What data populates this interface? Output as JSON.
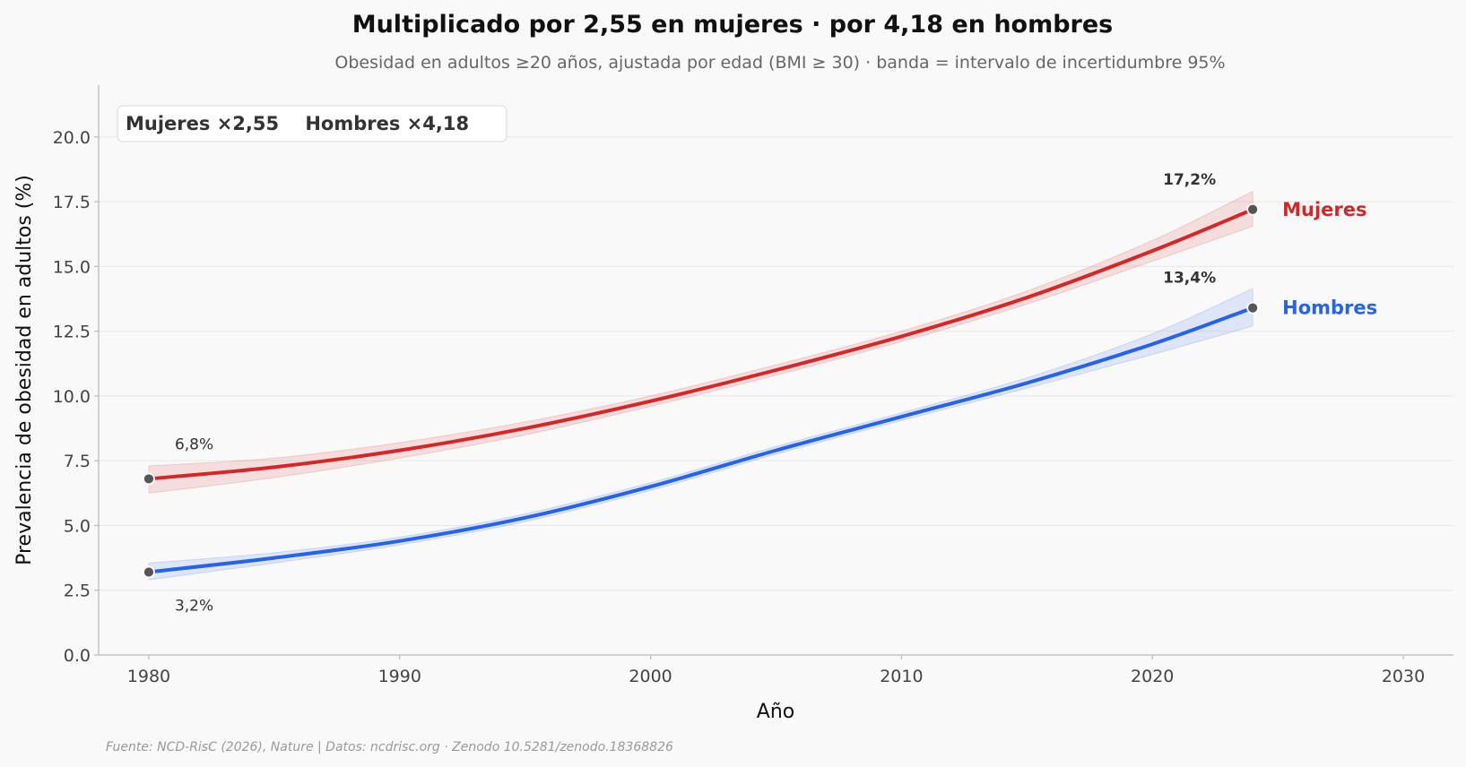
{
  "chart_data": {
    "type": "line",
    "title": "Multiplicado por 2,55 en mujeres · por 4,18 en hombres",
    "subtitle": "Obesidad en adultos ≥20 años, ajustada por edad (BMI ≥ 30) · banda = intervalo de incertidumbre 95%",
    "xlabel": "Año",
    "ylabel": "Prevalencia de obesidad en adultos (%)",
    "source": "Fuente: NCD-RisC (2026), Nature | Datos: ncdrisc.org · Zenodo 10.5281/zenodo.18368826",
    "xlim": [
      1978,
      2032
    ],
    "ylim": [
      0,
      22
    ],
    "x_ticks": [
      1980,
      1990,
      2000,
      2010,
      2020,
      2030
    ],
    "x_tick_labels": [
      "1980",
      "1990",
      "2000",
      "2010",
      "2020",
      "2030"
    ],
    "y_ticks": [
      0,
      2.5,
      5,
      7.5,
      10,
      12.5,
      15,
      17.5,
      20
    ],
    "y_tick_labels": [
      "0.0",
      "2.5",
      "5.0",
      "7.5",
      "10.0",
      "12.5",
      "15.0",
      "17.5",
      "20.0"
    ],
    "grid": "horizontal",
    "legend": {
      "placement": "top-left",
      "text": "Mujeres ×2,55    Hombres ×4,18"
    },
    "x": [
      1980,
      1985,
      1990,
      1995,
      2000,
      2005,
      2010,
      2015,
      2020,
      2024
    ],
    "series": [
      {
        "name": "Mujeres",
        "color": "#d62728",
        "values": [
          6.8,
          7.25,
          7.9,
          8.75,
          9.8,
          11.0,
          12.3,
          13.8,
          15.6,
          17.2
        ],
        "lower": [
          6.25,
          6.85,
          7.6,
          8.5,
          9.6,
          10.8,
          12.1,
          13.55,
          15.2,
          16.55
        ],
        "upper": [
          7.3,
          7.6,
          8.2,
          9.0,
          10.0,
          11.2,
          12.5,
          14.05,
          16.0,
          17.9
        ],
        "start_label": "6,8%",
        "end_label": "17,2%"
      },
      {
        "name": "Hombres",
        "color": "#2563eb",
        "values": [
          3.2,
          3.75,
          4.4,
          5.3,
          6.5,
          7.9,
          9.2,
          10.5,
          12.0,
          13.4
        ],
        "lower": [
          2.9,
          3.55,
          4.25,
          5.15,
          6.35,
          7.75,
          9.05,
          10.3,
          11.6,
          12.7
        ],
        "upper": [
          3.55,
          3.95,
          4.55,
          5.45,
          6.65,
          8.05,
          9.35,
          10.7,
          12.4,
          14.15
        ],
        "start_label": "3,2%",
        "end_label": "13,4%"
      }
    ]
  }
}
